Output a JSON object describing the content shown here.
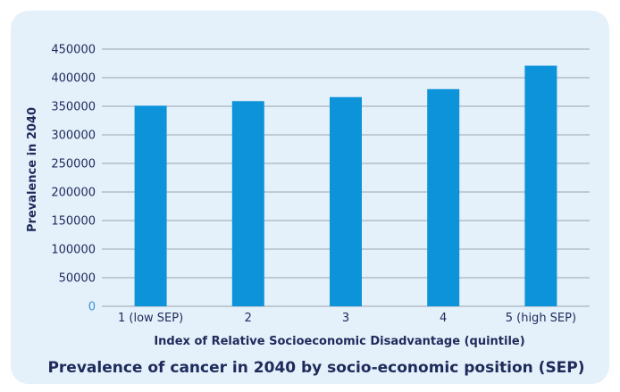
{
  "chart_data": {
    "type": "bar",
    "title": "Prevalence of cancer in 2040 by socio-economic position (SEP)",
    "xlabel": "Index of Relative Socioeconomic Disadvantage (quintile)",
    "ylabel": "Prevalence in 2040",
    "categories": [
      "1 (low SEP)",
      "2",
      "3",
      "4",
      "5 (high SEP)"
    ],
    "values": [
      351000,
      359000,
      366000,
      380000,
      421000
    ],
    "ylim": [
      0,
      450000
    ],
    "yticks": [
      "0",
      "50000",
      "100000",
      "150000",
      "200000",
      "250000",
      "300000",
      "350000",
      "400000",
      "450000"
    ],
    "grid": true,
    "colors": {
      "bar": "#0d93da",
      "grid": "#9aa4b0",
      "text": "#1e2a5a",
      "background": "#e4f0fa"
    }
  }
}
